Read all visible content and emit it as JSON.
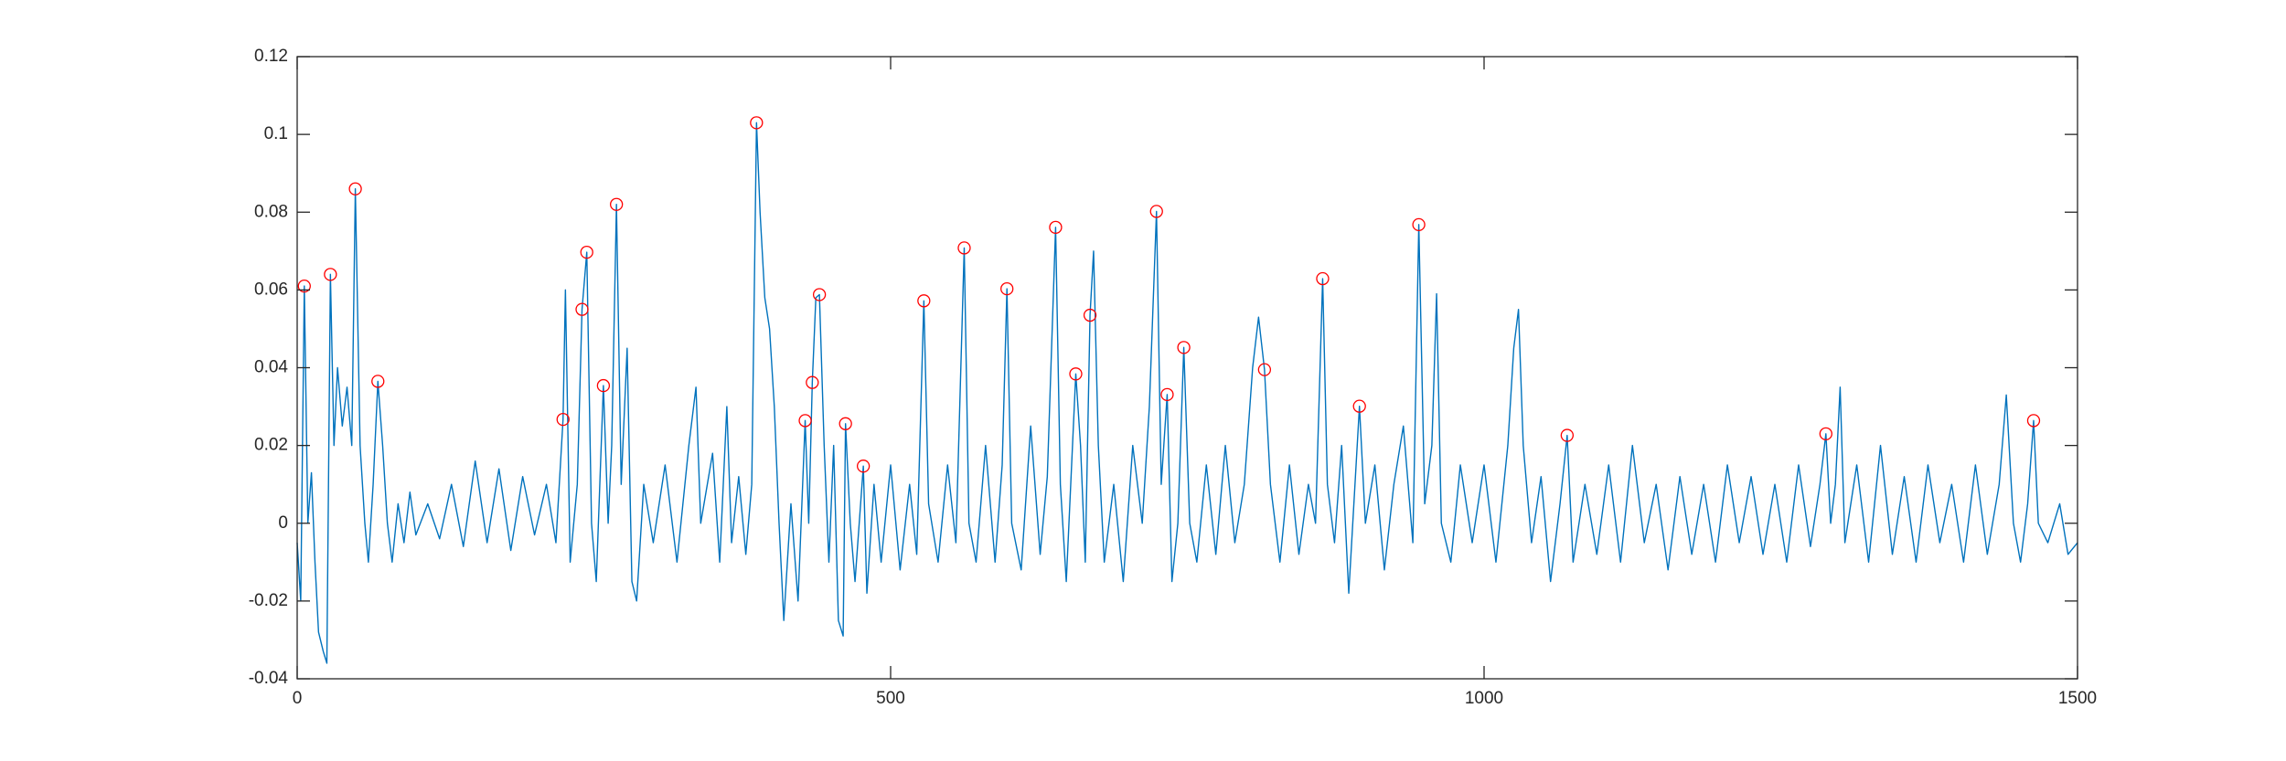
{
  "chart_data": {
    "type": "line",
    "xlim": [
      0,
      1500
    ],
    "ylim": [
      -0.04,
      0.12
    ],
    "xticks": [
      0,
      500,
      1000,
      1500
    ],
    "yticks": [
      -0.04,
      -0.02,
      0,
      0.02,
      0.04,
      0.06,
      0.08,
      0.1,
      0.12
    ],
    "grid": false,
    "series": [
      {
        "mode": "line",
        "color": "#0072bd",
        "x": [
          0,
          3,
          6,
          9,
          12,
          15,
          18,
          22,
          25,
          28,
          31,
          34,
          38,
          42,
          46,
          49,
          53,
          57,
          60,
          64,
          68,
          72,
          76,
          80,
          85,
          90,
          95,
          100,
          110,
          120,
          130,
          140,
          150,
          160,
          170,
          180,
          190,
          200,
          210,
          218,
          224,
          226,
          230,
          236,
          240,
          244,
          248,
          252,
          258,
          262,
          265,
          269,
          273,
          278,
          282,
          286,
          292,
          300,
          310,
          320,
          330,
          336,
          340,
          350,
          356,
          362,
          366,
          372,
          378,
          383,
          387,
          390,
          394,
          398,
          402,
          406,
          410,
          416,
          422,
          428,
          431,
          434,
          437,
          440,
          444,
          448,
          452,
          456,
          460,
          462,
          466,
          470,
          477,
          480,
          486,
          492,
          500,
          508,
          516,
          522,
          528,
          532,
          540,
          548,
          555,
          562,
          566,
          572,
          580,
          588,
          594,
          598,
          602,
          610,
          618,
          626,
          632,
          639,
          643,
          648,
          656,
          660,
          664,
          668,
          671,
          675,
          680,
          688,
          696,
          704,
          712,
          718,
          724,
          728,
          733,
          737,
          742,
          747,
          752,
          758,
          766,
          774,
          782,
          790,
          798,
          805,
          810,
          815,
          820,
          828,
          836,
          844,
          852,
          858,
          864,
          868,
          874,
          880,
          886,
          895,
          900,
          908,
          916,
          924,
          932,
          940,
          945,
          950,
          956,
          960,
          964,
          972,
          980,
          990,
          1000,
          1010,
          1020,
          1025,
          1029,
          1033,
          1040,
          1048,
          1056,
          1064,
          1070,
          1075,
          1085,
          1095,
          1105,
          1115,
          1125,
          1135,
          1145,
          1155,
          1165,
          1175,
          1185,
          1195,
          1205,
          1215,
          1225,
          1235,
          1245,
          1255,
          1265,
          1275,
          1283,
          1288,
          1292,
          1296,
          1300,
          1304,
          1314,
          1324,
          1334,
          1344,
          1354,
          1364,
          1374,
          1384,
          1394,
          1404,
          1414,
          1424,
          1434,
          1440,
          1446,
          1452,
          1458,
          1463,
          1467,
          1475,
          1485,
          1492,
          1500
        ],
        "values": [
          -0.005,
          -0.02,
          0.061,
          0.0,
          0.013,
          -0.01,
          -0.028,
          -0.033,
          -0.036,
          0.064,
          0.02,
          0.04,
          0.025,
          0.035,
          0.02,
          0.086,
          0.02,
          0.0,
          -0.01,
          0.01,
          0.0365,
          0.02,
          0.0,
          -0.01,
          0.005,
          -0.005,
          0.008,
          -0.003,
          0.005,
          -0.004,
          0.01,
          -0.006,
          0.016,
          -0.005,
          0.014,
          -0.007,
          0.012,
          -0.003,
          0.01,
          -0.005,
          0.0267,
          0.06,
          -0.01,
          0.01,
          0.055,
          0.0697,
          0.0,
          -0.015,
          0.0354,
          0.0,
          0.02,
          0.082,
          0.01,
          0.045,
          -0.015,
          -0.02,
          0.01,
          -0.005,
          0.015,
          -0.01,
          0.02,
          0.035,
          0.0,
          0.018,
          -0.01,
          0.03,
          -0.005,
          0.012,
          -0.008,
          0.01,
          0.103,
          0.08,
          0.058,
          0.05,
          0.03,
          0.0,
          -0.025,
          0.005,
          -0.02,
          0.0264,
          0.0,
          0.0362,
          0.058,
          0.0588,
          0.02,
          -0.01,
          0.02,
          -0.025,
          -0.029,
          0.0256,
          0.0,
          -0.015,
          0.0147,
          -0.018,
          0.01,
          -0.01,
          0.015,
          -0.012,
          0.01,
          -0.008,
          0.0572,
          0.005,
          -0.01,
          0.015,
          -0.005,
          0.0708,
          0.0,
          -0.01,
          0.02,
          -0.01,
          0.015,
          0.0603,
          0.0,
          -0.012,
          0.025,
          -0.008,
          0.012,
          0.0761,
          0.01,
          -0.015,
          0.0384,
          0.02,
          -0.01,
          0.0535,
          0.07,
          0.02,
          -0.01,
          0.01,
          -0.015,
          0.02,
          0.0,
          0.03,
          0.0802,
          0.01,
          0.0331,
          -0.015,
          0.0,
          0.0452,
          0.0,
          -0.01,
          0.015,
          -0.008,
          0.02,
          -0.005,
          0.01,
          0.04,
          0.053,
          0.0395,
          0.01,
          -0.01,
          0.015,
          -0.008,
          0.01,
          0.0,
          0.0629,
          0.01,
          -0.005,
          0.02,
          -0.018,
          0.0301,
          0.0,
          0.015,
          -0.012,
          0.01,
          0.025,
          -0.005,
          0.0768,
          0.005,
          0.02,
          0.059,
          0.0,
          -0.01,
          0.015,
          -0.005,
          0.015,
          -0.01,
          0.02,
          0.045,
          0.055,
          0.02,
          -0.005,
          0.012,
          -0.015,
          0.005,
          0.0226,
          -0.01,
          0.01,
          -0.008,
          0.015,
          -0.01,
          0.02,
          -0.005,
          0.01,
          -0.012,
          0.012,
          -0.008,
          0.01,
          -0.01,
          0.015,
          -0.005,
          0.012,
          -0.008,
          0.01,
          -0.01,
          0.015,
          -0.006,
          0.01,
          0.023,
          0.0,
          0.01,
          0.035,
          -0.005,
          0.015,
          -0.01,
          0.02,
          -0.008,
          0.012,
          -0.01,
          0.015,
          -0.005,
          0.01,
          -0.01,
          0.015,
          -0.008,
          0.01,
          0.033,
          0.0,
          -0.01,
          0.005,
          0.0264,
          0.0,
          -0.005,
          0.005,
          -0.008,
          -0.005
        ]
      },
      {
        "mode": "markers",
        "color": "#ff0000",
        "x": [
          6,
          28,
          49,
          68,
          224,
          240,
          244,
          258,
          269,
          387,
          428,
          434,
          440,
          462,
          477,
          528,
          562,
          598,
          639,
          656,
          668,
          724,
          733,
          747,
          815,
          864,
          895,
          945,
          1070,
          1288,
          1463
        ],
        "values": [
          0.061,
          0.064,
          0.086,
          0.0365,
          0.0267,
          0.055,
          0.0697,
          0.0354,
          0.082,
          0.103,
          0.0264,
          0.0362,
          0.0588,
          0.0256,
          0.0147,
          0.0572,
          0.0708,
          0.0603,
          0.0761,
          0.0384,
          0.0535,
          0.0802,
          0.0331,
          0.0452,
          0.0395,
          0.0629,
          0.0301,
          0.0768,
          0.0226,
          0.023,
          0.0264
        ]
      }
    ]
  }
}
